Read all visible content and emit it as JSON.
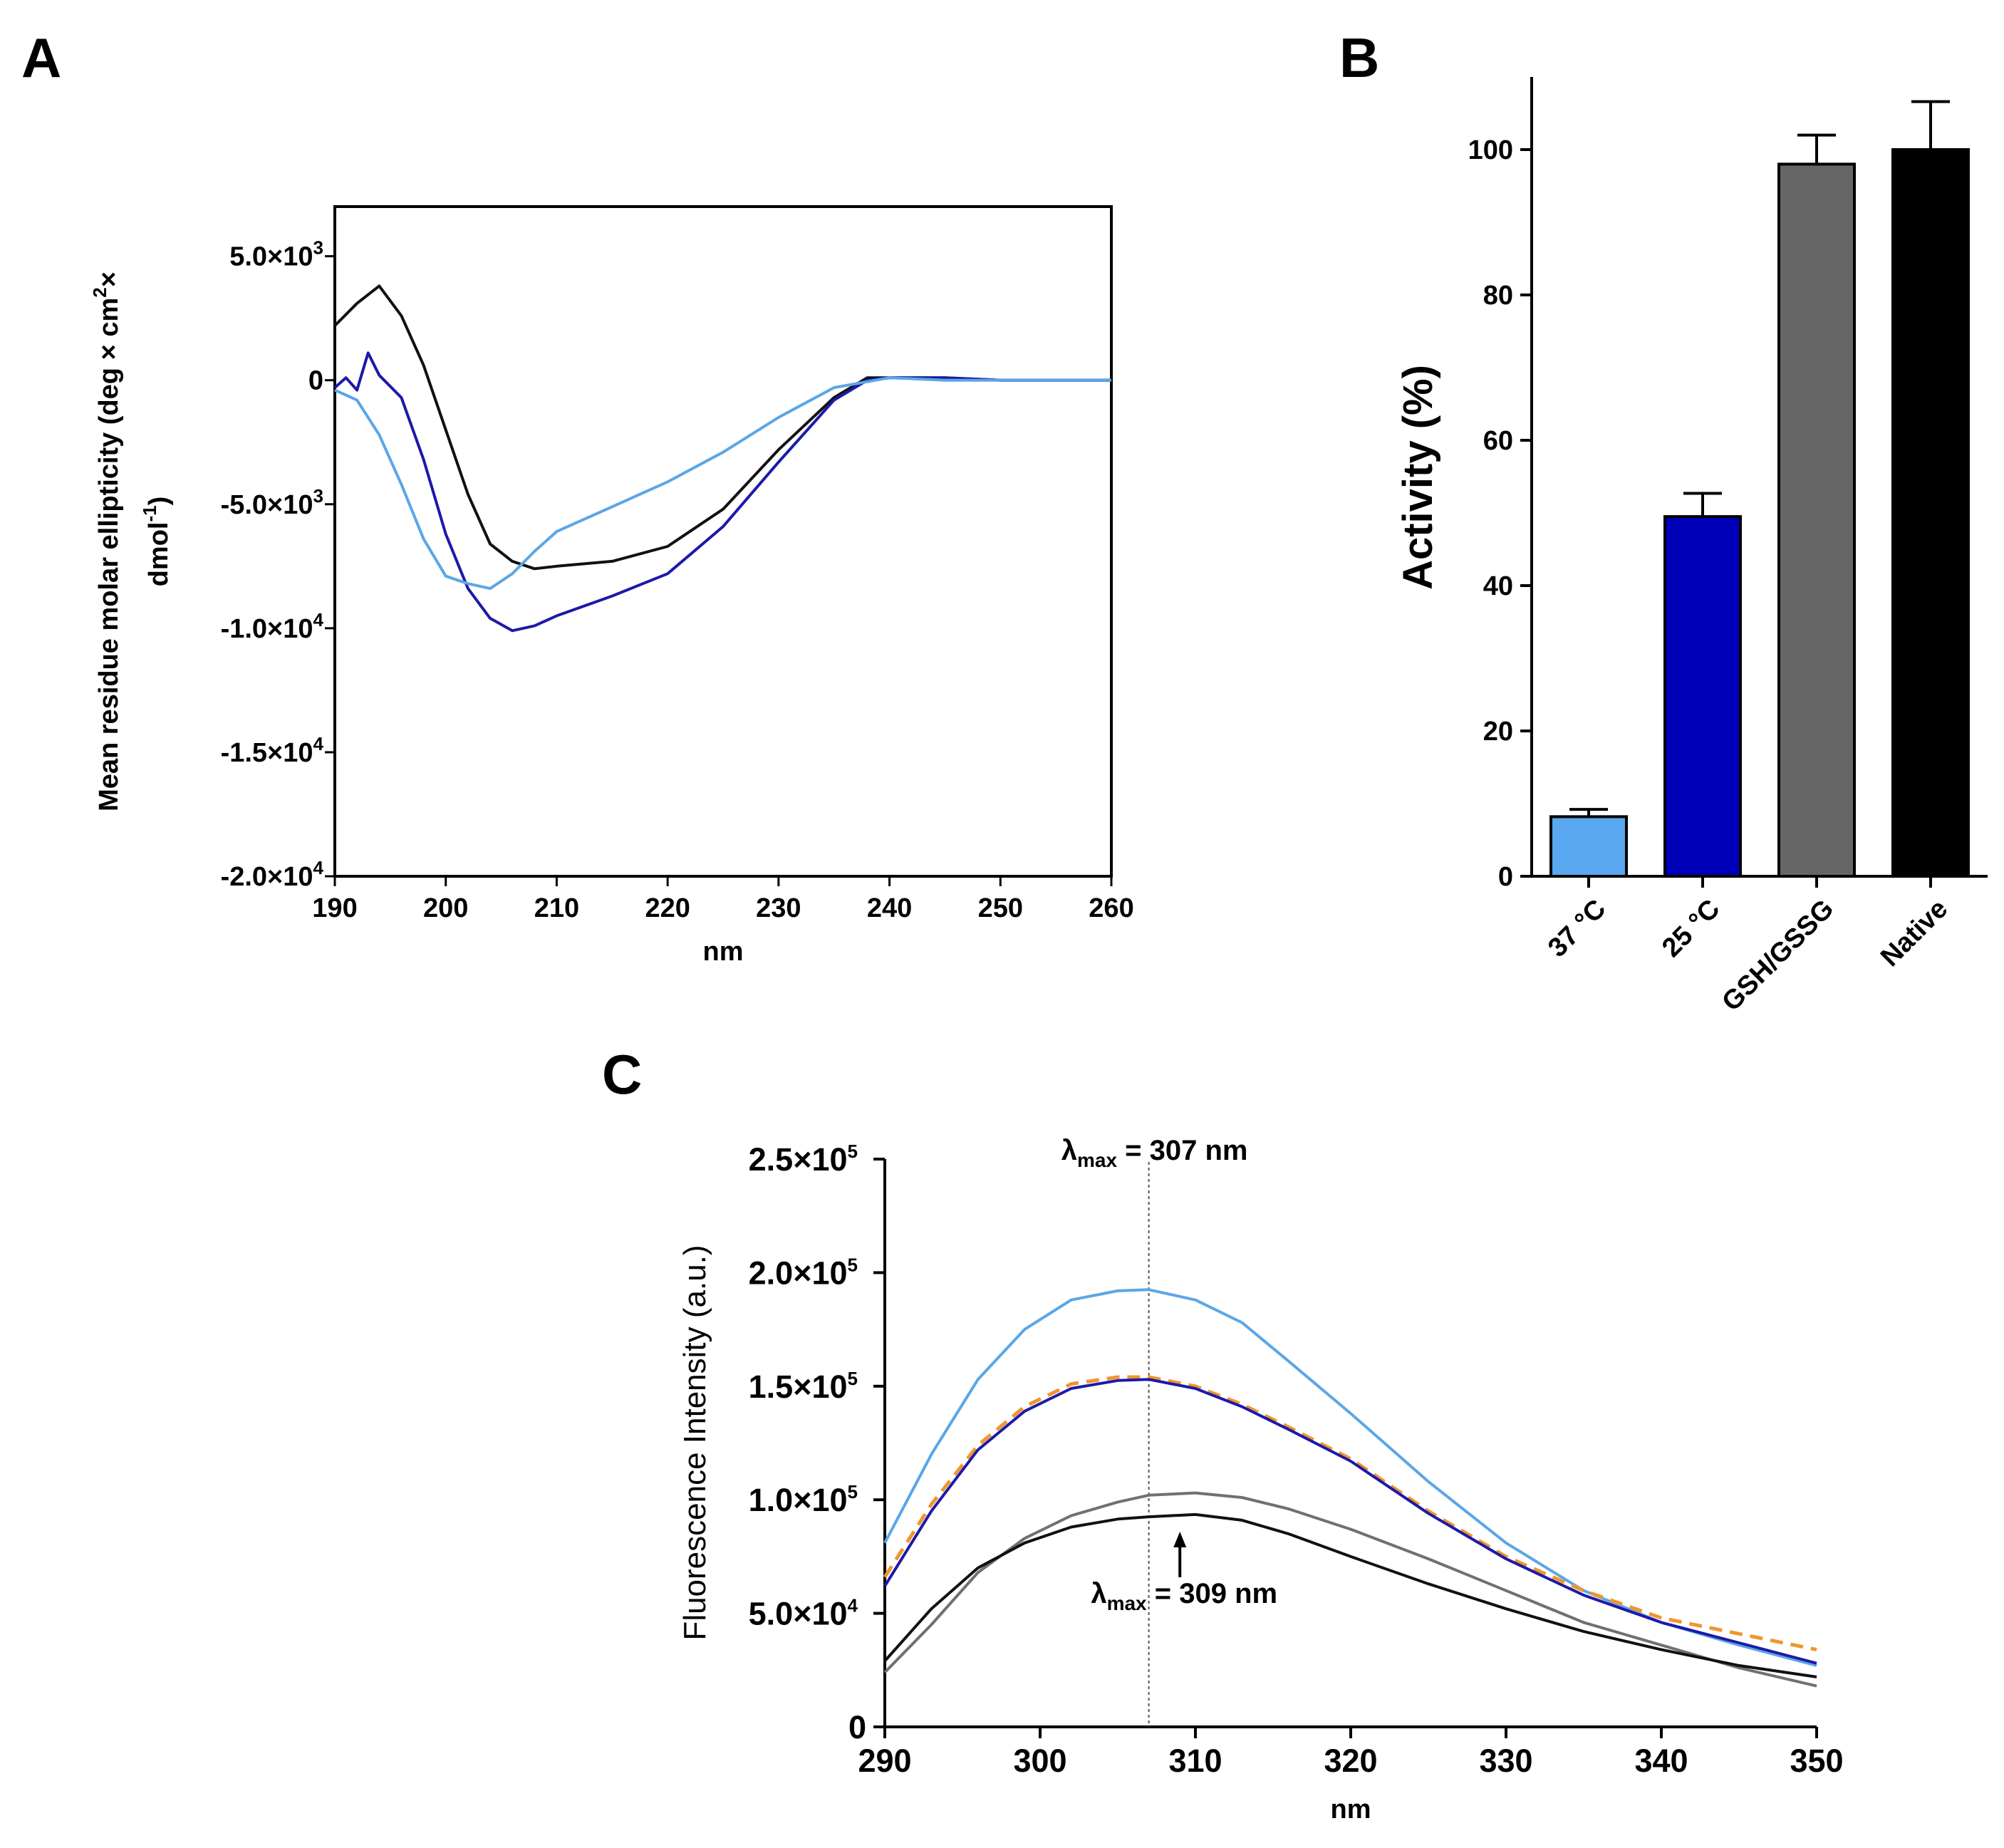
{
  "panels": {
    "A": {
      "label": "A"
    },
    "B": {
      "label": "B"
    },
    "C": {
      "label": "C"
    }
  },
  "chart_data": [
    {
      "panel": "A",
      "type": "line",
      "title": "",
      "xlabel": "nm",
      "ylabel_line1": "Mean residue molar ellipticity (deg  × cm",
      "ylabel_sup": "2",
      "ylabel_after": "×",
      "ylabel_line2_pre": "dmol",
      "ylabel_line2_sup": "-1",
      "ylabel_line2_post": ")",
      "xlim": [
        190,
        260
      ],
      "ylim": [
        -20000,
        7000
      ],
      "x_ticks": [
        190,
        200,
        210,
        220,
        230,
        240,
        250,
        260
      ],
      "x_tick_labels": [
        "190",
        "200",
        "210",
        "220",
        "230",
        "240",
        "250",
        "260"
      ],
      "y_ticks": [
        {
          "value": 5000,
          "mantissa": "5.0×10",
          "exp": "3"
        },
        {
          "value": 0,
          "mantissa": "0",
          "exp": ""
        },
        {
          "value": -5000,
          "mantissa": "-5.0×10",
          "exp": "3"
        },
        {
          "value": -10000,
          "mantissa": "-1.0×10",
          "exp": "4"
        },
        {
          "value": -15000,
          "mantissa": "-1.5×10",
          "exp": "4"
        },
        {
          "value": -20000,
          "mantissa": "-2.0×10",
          "exp": "4"
        }
      ],
      "grid": false,
      "series": [
        {
          "name": "black",
          "color": "#111111",
          "x": [
            190,
            192,
            194,
            196,
            198,
            200,
            202,
            204,
            206,
            208,
            210,
            215,
            220,
            225,
            230,
            235,
            238,
            240,
            245,
            250,
            255,
            260
          ],
          "y": [
            2200,
            3100,
            3800,
            2600,
            600,
            -2000,
            -4600,
            -6600,
            -7300,
            -7600,
            -7500,
            -7300,
            -6700,
            -5200,
            -2800,
            -700,
            100,
            100,
            100,
            0,
            0,
            0
          ]
        },
        {
          "name": "dark blue",
          "color": "#1c1aa8",
          "x": [
            190,
            191,
            192,
            193,
            194,
            196,
            198,
            200,
            202,
            204,
            206,
            208,
            210,
            215,
            220,
            225,
            230,
            235,
            238,
            240,
            245,
            250,
            255,
            260
          ],
          "y": [
            -300,
            100,
            -400,
            1100,
            200,
            -700,
            -3200,
            -6200,
            -8400,
            -9600,
            -10100,
            -9900,
            -9500,
            -8700,
            -7800,
            -5900,
            -3300,
            -800,
            0,
            100,
            100,
            0,
            0,
            0
          ]
        },
        {
          "name": "light blue",
          "color": "#5ba6e6",
          "x": [
            190,
            192,
            194,
            196,
            198,
            200,
            202,
            204,
            206,
            208,
            210,
            215,
            220,
            225,
            230,
            235,
            240,
            245,
            250,
            255,
            260
          ],
          "y": [
            -400,
            -800,
            -2200,
            -4200,
            -6400,
            -7900,
            -8200,
            -8400,
            -7800,
            -6900,
            -6100,
            -5100,
            -4100,
            -2900,
            -1500,
            -300,
            100,
            0,
            0,
            0,
            0
          ]
        }
      ]
    },
    {
      "panel": "B",
      "type": "bar",
      "title": "",
      "xlabel": "",
      "ylabel": "Activity (%)",
      "ylim": [
        0,
        110
      ],
      "y_ticks": [
        0,
        20,
        40,
        60,
        80,
        100
      ],
      "y_tick_labels": [
        "0",
        "20",
        "40",
        "60",
        "80",
        "100"
      ],
      "categories": [
        "37 °C",
        "25 °C",
        "GSH/GSSG",
        "Native"
      ],
      "values": [
        8.2,
        49.5,
        98,
        100
      ],
      "errors": [
        1,
        3.2,
        4,
        6.6
      ],
      "colors": [
        "#5aa8ef",
        "#0000b8",
        "#666666",
        "#000000"
      ],
      "grid": false
    },
    {
      "panel": "C",
      "type": "line",
      "title": "",
      "xlabel": "nm",
      "ylabel": "Fluorescence Intensity (a.u.)",
      "xlim": [
        290,
        350
      ],
      "ylim": [
        0,
        250000
      ],
      "x_ticks": [
        290,
        300,
        310,
        320,
        330,
        340,
        350
      ],
      "x_tick_labels": [
        "290",
        "300",
        "310",
        "320",
        "330",
        "340",
        "350"
      ],
      "y_ticks": [
        {
          "value": 0,
          "mantissa": "0",
          "exp": ""
        },
        {
          "value": 50000,
          "mantissa": "5.0×10",
          "exp": "4"
        },
        {
          "value": 100000,
          "mantissa": "1.0×10",
          "exp": "5"
        },
        {
          "value": 150000,
          "mantissa": "1.5×10",
          "exp": "5"
        },
        {
          "value": 200000,
          "mantissa": "2.0×10",
          "exp": "5"
        },
        {
          "value": 250000,
          "mantissa": "2.5×10",
          "exp": "5"
        }
      ],
      "grid": false,
      "vline": {
        "x": 307,
        "style": "dotted"
      },
      "annotations": [
        {
          "id": "lmax307",
          "pre": "λ",
          "sub": "max",
          "post": " = 307 nm"
        },
        {
          "id": "lmax309",
          "pre": "λ",
          "sub": "max",
          "post": " = 309 nm",
          "arrow_x": 309
        }
      ],
      "series": [
        {
          "name": "light blue",
          "color": "#5ba6e6",
          "dashed": false,
          "x": [
            290,
            293,
            296,
            299,
            302,
            305,
            307,
            310,
            313,
            316,
            320,
            325,
            330,
            335,
            340,
            345,
            350
          ],
          "y": [
            81000,
            120000,
            153000,
            175000,
            188000,
            192000,
            192500,
            188000,
            178000,
            161000,
            138000,
            108000,
            81000,
            60000,
            46000,
            36000,
            27000
          ]
        },
        {
          "name": "orange",
          "color": "#f0962e",
          "dashed": true,
          "x": [
            290,
            293,
            296,
            299,
            302,
            305,
            307,
            310,
            313,
            316,
            320,
            325,
            330,
            335,
            340,
            345,
            350
          ],
          "y": [
            66000,
            98000,
            124000,
            141000,
            151000,
            154000,
            154000,
            150000,
            142000,
            132000,
            118000,
            95000,
            75000,
            60000,
            48000,
            41000,
            34000
          ]
        },
        {
          "name": "dark blue",
          "color": "#1c1aa8",
          "dashed": false,
          "x": [
            290,
            293,
            296,
            299,
            302,
            305,
            307,
            310,
            313,
            316,
            320,
            325,
            330,
            335,
            340,
            345,
            350
          ],
          "y": [
            62000,
            95000,
            122000,
            139000,
            149000,
            152500,
            153000,
            149000,
            141000,
            131000,
            117000,
            94000,
            74000,
            58000,
            46000,
            37000,
            28000
          ]
        },
        {
          "name": "gray",
          "color": "#707070",
          "dashed": false,
          "x": [
            290,
            293,
            296,
            299,
            302,
            305,
            307,
            310,
            313,
            316,
            320,
            325,
            330,
            335,
            340,
            345,
            350
          ],
          "y": [
            24000,
            45000,
            68000,
            83000,
            93000,
            99000,
            102000,
            103000,
            101000,
            96000,
            87000,
            74000,
            60000,
            46000,
            36000,
            26000,
            18000
          ]
        },
        {
          "name": "black",
          "color": "#111111",
          "dashed": false,
          "x": [
            290,
            293,
            296,
            299,
            302,
            305,
            307,
            310,
            313,
            316,
            320,
            325,
            330,
            335,
            340,
            345,
            350
          ],
          "y": [
            29000,
            52000,
            70000,
            81000,
            88000,
            91500,
            92500,
            93500,
            91000,
            85000,
            75000,
            63000,
            52000,
            42000,
            34000,
            27000,
            22000
          ]
        }
      ]
    }
  ]
}
